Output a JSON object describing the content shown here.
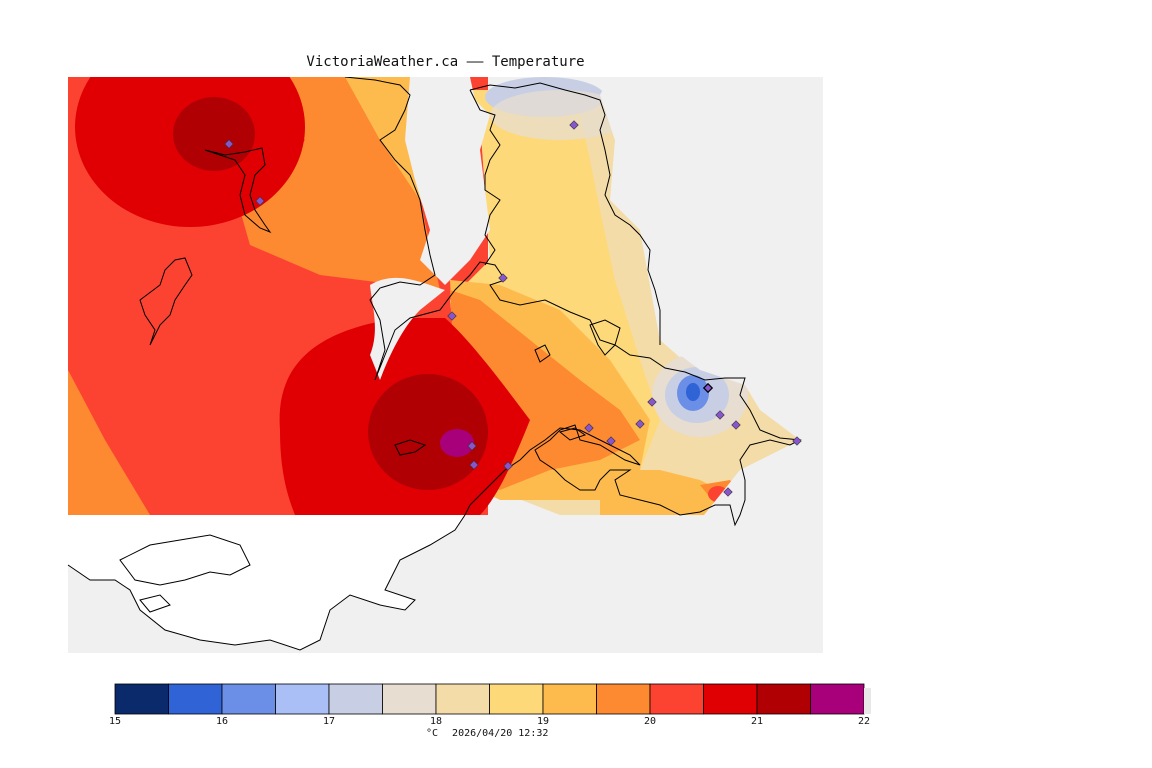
{
  "title": "VictoriaWeather.ca —— Temperature",
  "legend": {
    "unit": "°C",
    "timestamp": "2026/04/20 12:32",
    "ticks": [
      "15",
      "16",
      "17",
      "18",
      "19",
      "20",
      "21",
      "22"
    ],
    "bins": [
      {
        "from": 15.0,
        "to": 15.5,
        "color": "#0a2a6b"
      },
      {
        "from": 15.5,
        "to": 16.0,
        "color": "#2f63d6"
      },
      {
        "from": 16.0,
        "to": 16.5,
        "color": "#6b8fe6"
      },
      {
        "from": 16.5,
        "to": 17.0,
        "color": "#aabff5"
      },
      {
        "from": 17.0,
        "to": 17.5,
        "color": "#c8cfe4"
      },
      {
        "from": 17.5,
        "to": 18.0,
        "color": "#e7ddd0"
      },
      {
        "from": 18.0,
        "to": 18.5,
        "color": "#f3dca8"
      },
      {
        "from": 18.5,
        "to": 19.0,
        "color": "#fdd97a"
      },
      {
        "from": 19.0,
        "to": 19.5,
        "color": "#fdbb4e"
      },
      {
        "from": 19.5,
        "to": 20.0,
        "color": "#fd8a30"
      },
      {
        "from": 20.0,
        "to": 20.5,
        "color": "#fc4332"
      },
      {
        "from": 20.5,
        "to": 21.0,
        "color": "#e00004"
      },
      {
        "from": 21.0,
        "to": 21.5,
        "color": "#b00003"
      },
      {
        "from": 21.5,
        "to": 22.0,
        "color": "#a8007a"
      }
    ]
  },
  "colors": {
    "background": "#f0f0f0",
    "coastline": "#000000",
    "station": "#8855cc"
  }
}
